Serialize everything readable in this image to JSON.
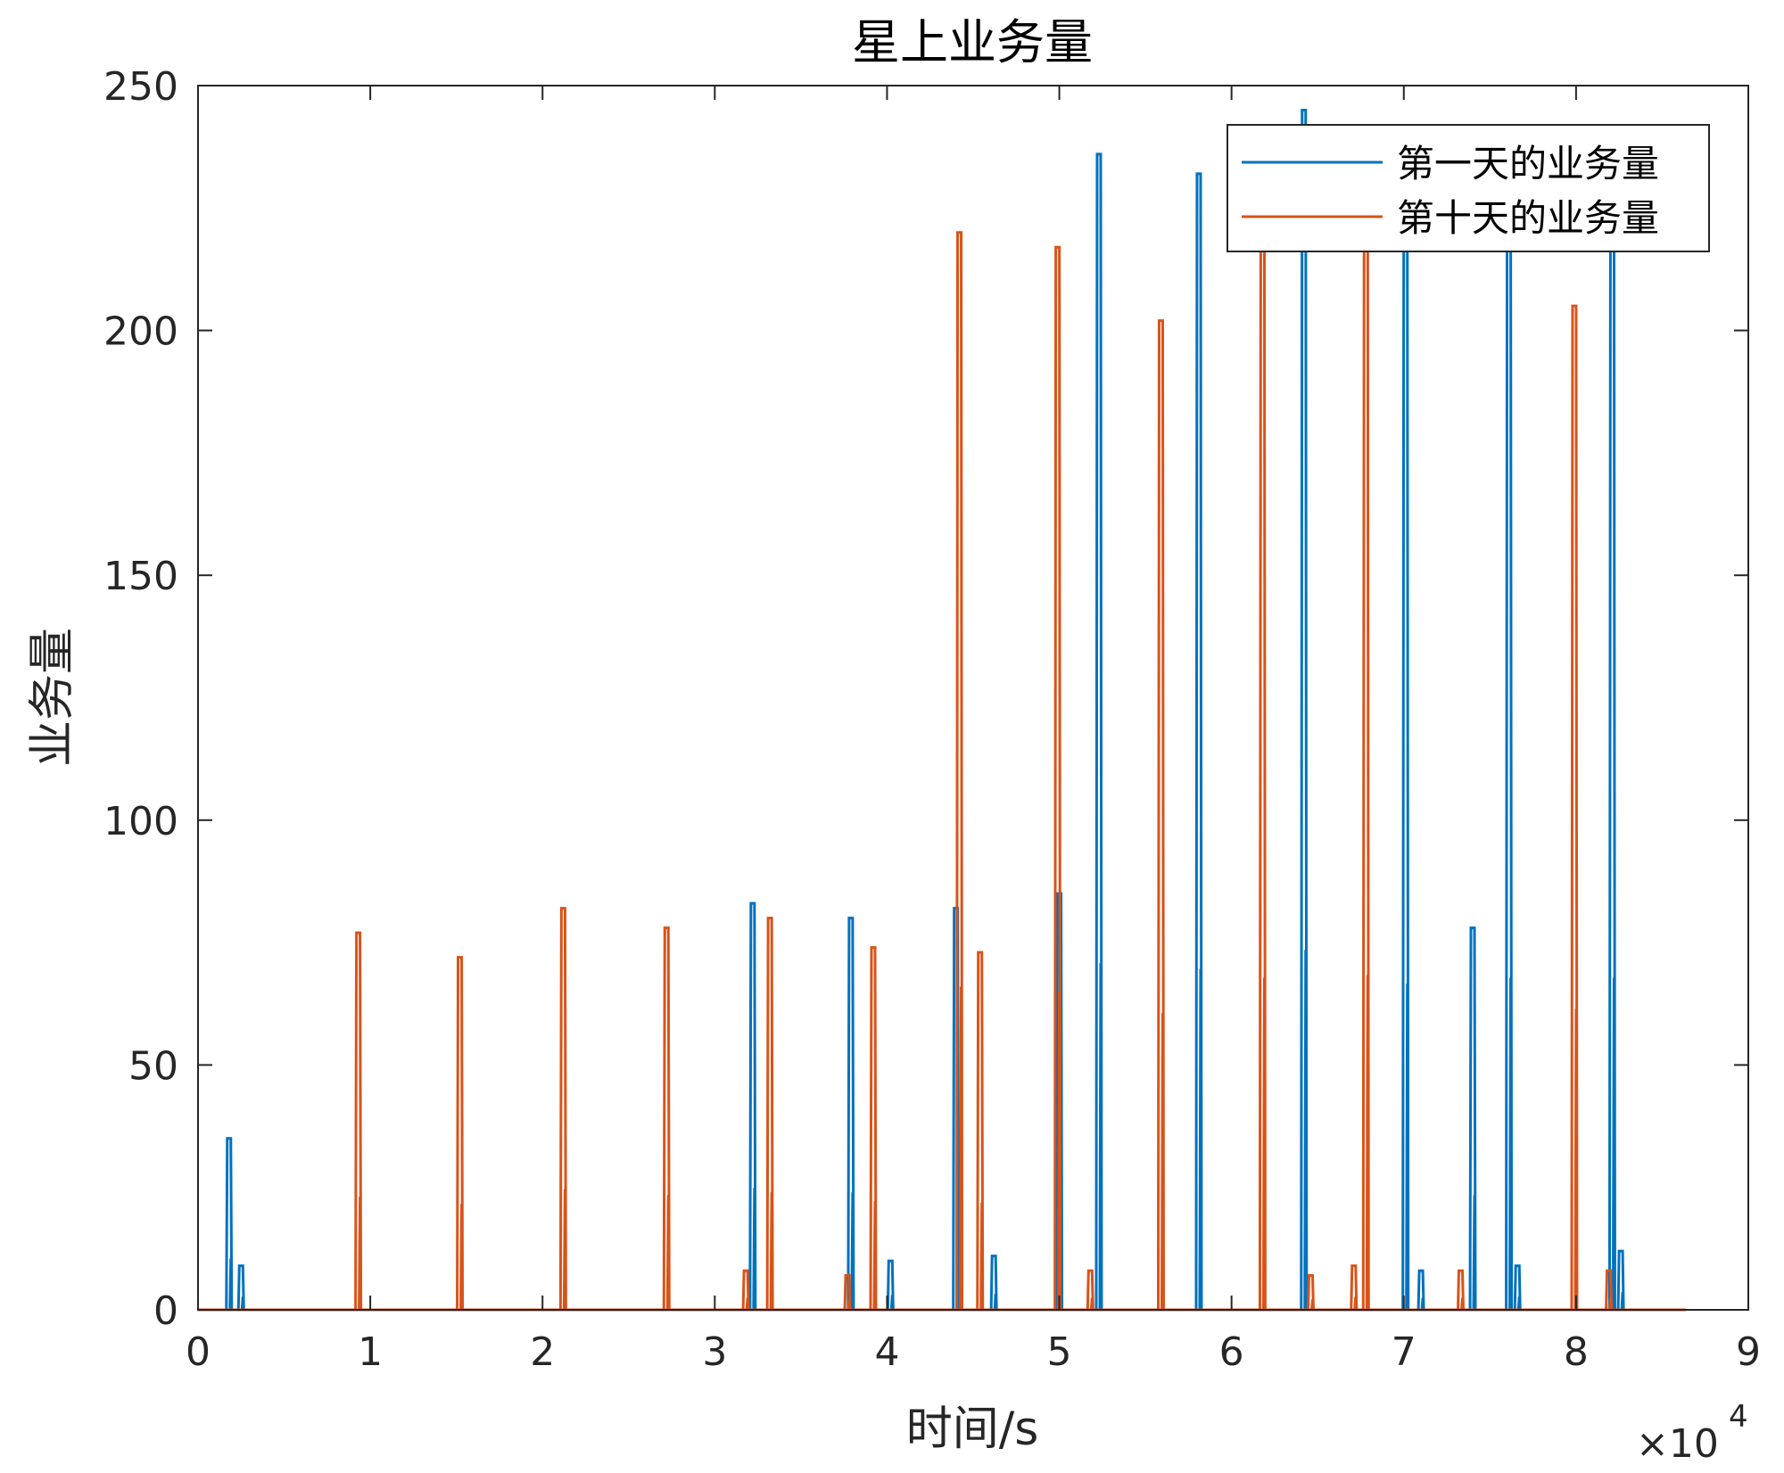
{
  "chart_data": {
    "type": "line",
    "title": "星上业务量",
    "xlabel": "时间/s",
    "ylabel": "业务量",
    "x_multiplier_label": "×10",
    "x_multiplier_exp": "4",
    "xlim": [
      0,
      90000
    ],
    "ylim": [
      0,
      250
    ],
    "xticks": [
      0,
      10000,
      20000,
      30000,
      40000,
      50000,
      60000,
      70000,
      80000,
      90000
    ],
    "xtick_labels": [
      "0",
      "1",
      "2",
      "3",
      "4",
      "5",
      "6",
      "7",
      "8",
      "9"
    ],
    "yticks": [
      0,
      50,
      100,
      150,
      200,
      250
    ],
    "ytick_labels": [
      "0",
      "50",
      "100",
      "150",
      "200",
      "250"
    ],
    "grid": false,
    "legend_position": "top-right",
    "colors": {
      "day1": "#0072BD",
      "day10": "#D95319",
      "axis": "#262626"
    },
    "series": [
      {
        "name": "第一天的业务量",
        "color": "#0072BD",
        "x_range": [
          0,
          86400
        ],
        "peaks": [
          {
            "x": 1800,
            "y": 35
          },
          {
            "x": 2500,
            "y": 9
          },
          {
            "x": 32200,
            "y": 83
          },
          {
            "x": 37900,
            "y": 80
          },
          {
            "x": 40200,
            "y": 10
          },
          {
            "x": 44000,
            "y": 82
          },
          {
            "x": 46200,
            "y": 11
          },
          {
            "x": 50000,
            "y": 85
          },
          {
            "x": 52300,
            "y": 236
          },
          {
            "x": 58100,
            "y": 232
          },
          {
            "x": 64200,
            "y": 245
          },
          {
            "x": 70100,
            "y": 222
          },
          {
            "x": 71000,
            "y": 8
          },
          {
            "x": 74000,
            "y": 78
          },
          {
            "x": 76100,
            "y": 226
          },
          {
            "x": 76600,
            "y": 9
          },
          {
            "x": 82100,
            "y": 226
          },
          {
            "x": 82600,
            "y": 12
          }
        ]
      },
      {
        "name": "第十天的业务量",
        "color": "#D95319",
        "x_range": [
          0,
          86400
        ],
        "peaks": [
          {
            "x": 9300,
            "y": 77
          },
          {
            "x": 15200,
            "y": 72
          },
          {
            "x": 21200,
            "y": 82
          },
          {
            "x": 27200,
            "y": 78
          },
          {
            "x": 31800,
            "y": 8
          },
          {
            "x": 33200,
            "y": 80
          },
          {
            "x": 37700,
            "y": 7
          },
          {
            "x": 39200,
            "y": 74
          },
          {
            "x": 44200,
            "y": 220
          },
          {
            "x": 45400,
            "y": 73
          },
          {
            "x": 49900,
            "y": 217
          },
          {
            "x": 51800,
            "y": 8
          },
          {
            "x": 55900,
            "y": 202
          },
          {
            "x": 61800,
            "y": 226
          },
          {
            "x": 64600,
            "y": 7
          },
          {
            "x": 67100,
            "y": 9
          },
          {
            "x": 67800,
            "y": 228
          },
          {
            "x": 73300,
            "y": 8
          },
          {
            "x": 79900,
            "y": 205
          },
          {
            "x": 81900,
            "y": 8
          }
        ]
      }
    ]
  }
}
